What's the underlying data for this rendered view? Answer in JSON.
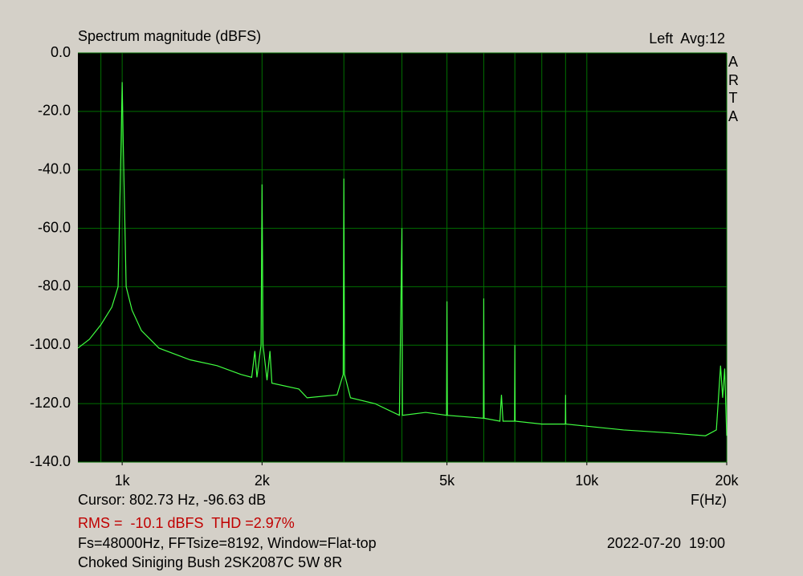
{
  "chart_data": {
    "type": "line",
    "title": "Spectrum magnitude (dBFS)",
    "channel_info": "Left  Avg:12",
    "side_label": "ARTA",
    "x_label": "F(Hz)",
    "cursor": "Cursor: 802.73 Hz, -96.63 dB",
    "measurement": "RMS =  -10.1 dBFS  THD =2.97%",
    "settings": "Fs=48000Hz, FFTsize=8192, Window=Flat-top",
    "timestamp": "2022-07-20  19:00",
    "description": "Choked Siniging Bush 2SK2087C 5W 8R",
    "xlog": true,
    "grid": true,
    "xlim": [
      803,
      20000
    ],
    "ylim": [
      -140,
      0
    ],
    "xticks": [
      {
        "value": 1000,
        "label": "1k"
      },
      {
        "value": 2000,
        "label": "2k"
      },
      {
        "value": 5000,
        "label": "5k"
      },
      {
        "value": 10000,
        "label": "10k"
      },
      {
        "value": 20000,
        "label": "20k"
      }
    ],
    "xgrid": [
      900,
      1000,
      2000,
      3000,
      4000,
      5000,
      6000,
      7000,
      8000,
      9000,
      10000,
      20000
    ],
    "yticks": [
      {
        "value": 0,
        "label": "0.0"
      },
      {
        "value": -20,
        "label": "-20.0"
      },
      {
        "value": -40,
        "label": "-40.0"
      },
      {
        "value": -60,
        "label": "-60.0"
      },
      {
        "value": -80,
        "label": "-80.0"
      },
      {
        "value": -100,
        "label": "-100.0"
      },
      {
        "value": -120,
        "label": "-120.0"
      },
      {
        "value": -140,
        "label": "-140.0"
      }
    ],
    "series": [
      {
        "color": "#40ff40",
        "x": [
          803,
          850,
          900,
          950,
          980,
          995,
          1000,
          1005,
          1020,
          1050,
          1100,
          1200,
          1400,
          1600,
          1800,
          1900,
          1930,
          1950,
          1990,
          2000,
          2010,
          2050,
          2080,
          2100,
          2400,
          2500,
          2900,
          2990,
          3000,
          3010,
          3100,
          3500,
          3950,
          4000,
          4010,
          4500,
          4990,
          5000,
          5010,
          5990,
          6000,
          6010,
          6500,
          6550,
          6600,
          6990,
          7000,
          7010,
          8000,
          8990,
          9000,
          9010,
          12000,
          15000,
          18000,
          19000,
          19400,
          19600,
          19800,
          20000
        ],
        "values": [
          -101,
          -98,
          -93,
          -87,
          -80,
          -30,
          -10,
          -30,
          -80,
          -88,
          -95,
          -101,
          -105,
          -107,
          -110,
          -111,
          -102,
          -111,
          -100,
          -45,
          -100,
          -112,
          -102,
          -113,
          -115,
          -118,
          -117,
          -110,
          -43,
          -110,
          -118,
          -120,
          -124,
          -60,
          -124,
          -123,
          -124,
          -85,
          -124,
          -125,
          -84,
          -125,
          -126,
          -117,
          -126,
          -126,
          -100,
          -126,
          -127,
          -127,
          -117,
          -127,
          -129,
          -130,
          -131,
          -129,
          -107,
          -118,
          -108,
          -131
        ]
      }
    ]
  }
}
